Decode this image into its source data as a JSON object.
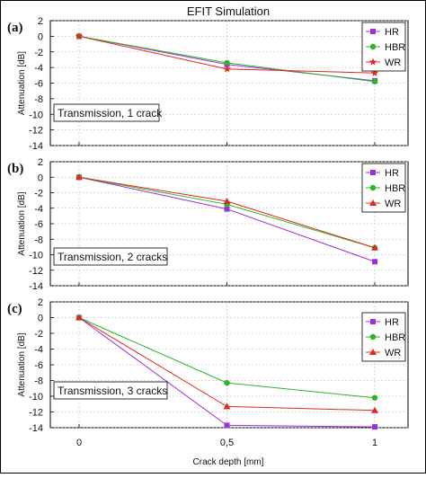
{
  "title": "EFIT Simulation",
  "chart_data": [
    {
      "type": "line",
      "panel_label": "(a)",
      "annotation": "Transmission, 1 crack",
      "ylabel": "Attenuation [dB]",
      "xlabel": "",
      "ylim": [
        -14,
        2
      ],
      "yticks": [
        2,
        0,
        -2,
        -4,
        -6,
        -8,
        -10,
        -12,
        -14
      ],
      "x": [
        0,
        0.5,
        1
      ],
      "x_tick_labels": [],
      "grid": true,
      "legend_position": "top-right",
      "series": [
        {
          "name": "HR",
          "marker": "square",
          "color": "#9b30d9",
          "values": [
            0,
            -3.6,
            -5.7
          ]
        },
        {
          "name": "HBR",
          "marker": "circle",
          "color": "#2ab52a",
          "values": [
            0,
            -3.4,
            -5.8
          ]
        },
        {
          "name": "WR",
          "marker": "star",
          "color": "#e0281e",
          "values": [
            0,
            -4.2,
            -4.7
          ]
        }
      ]
    },
    {
      "type": "line",
      "panel_label": "(b)",
      "annotation": "Transmission, 2 cracks",
      "ylabel": "Attenuation [dB]",
      "xlabel": "",
      "ylim": [
        -14,
        2
      ],
      "yticks": [
        2,
        0,
        -2,
        -4,
        -6,
        -8,
        -10,
        -12,
        -14
      ],
      "x": [
        0,
        0.5,
        1
      ],
      "x_tick_labels": [],
      "grid": true,
      "legend_position": "top-right",
      "series": [
        {
          "name": "HR",
          "marker": "square",
          "color": "#9b30d9",
          "values": [
            0,
            -4.1,
            -10.9
          ]
        },
        {
          "name": "HBR",
          "marker": "circle",
          "color": "#2ab52a",
          "values": [
            0,
            -3.5,
            -9.1
          ]
        },
        {
          "name": "WR",
          "marker": "triangle",
          "color": "#e0281e",
          "values": [
            0,
            -3.1,
            -9.1
          ]
        }
      ]
    },
    {
      "type": "line",
      "panel_label": "(c)",
      "annotation": "Transmission, 3 cracks",
      "ylabel": "Attenuation [dB]",
      "xlabel": "Crack depth [mm]",
      "ylim": [
        -14,
        2
      ],
      "yticks": [
        2,
        0,
        -2,
        -4,
        -6,
        -8,
        -10,
        -12,
        -14
      ],
      "x": [
        0,
        0.5,
        1
      ],
      "x_tick_labels": [
        "0",
        "0,5",
        "1"
      ],
      "grid": true,
      "legend_position": "top-right",
      "series": [
        {
          "name": "HR",
          "marker": "square",
          "color": "#9b30d9",
          "values": [
            0,
            -13.7,
            -13.9
          ]
        },
        {
          "name": "HBR",
          "marker": "circle",
          "color": "#2ab52a",
          "values": [
            0,
            -8.3,
            -10.2
          ]
        },
        {
          "name": "WR",
          "marker": "triangle",
          "color": "#e0281e",
          "values": [
            0,
            -11.3,
            -11.8
          ]
        }
      ]
    }
  ]
}
